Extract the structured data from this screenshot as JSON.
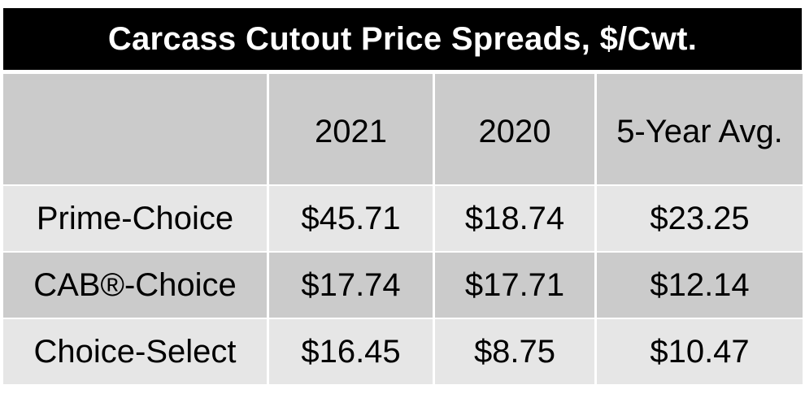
{
  "title": "Carcass Cutout Price Spreads, $/Cwt.",
  "chart_data": {
    "type": "table",
    "title": "Carcass Cutout Price Spreads, $/Cwt.",
    "columns": [
      "",
      "2021",
      "2020",
      "5-Year Avg."
    ],
    "rows": [
      {
        "label": "Prime-Choice",
        "values": [
          "$45.71",
          "$18.74",
          "$23.25"
        ]
      },
      {
        "label": "CAB®-Choice",
        "values": [
          "$17.74",
          "$17.71",
          "$12.14"
        ]
      },
      {
        "label": "Choice-Select",
        "values": [
          "$16.45",
          "$8.75",
          "$10.47"
        ]
      }
    ]
  },
  "colors": {
    "title_bg": "#000000",
    "title_text": "#ffffff",
    "header_row_bg": "#cbcbcb",
    "row_light_bg": "#e6e6e6",
    "row_dark_bg": "#cbcbcb"
  }
}
